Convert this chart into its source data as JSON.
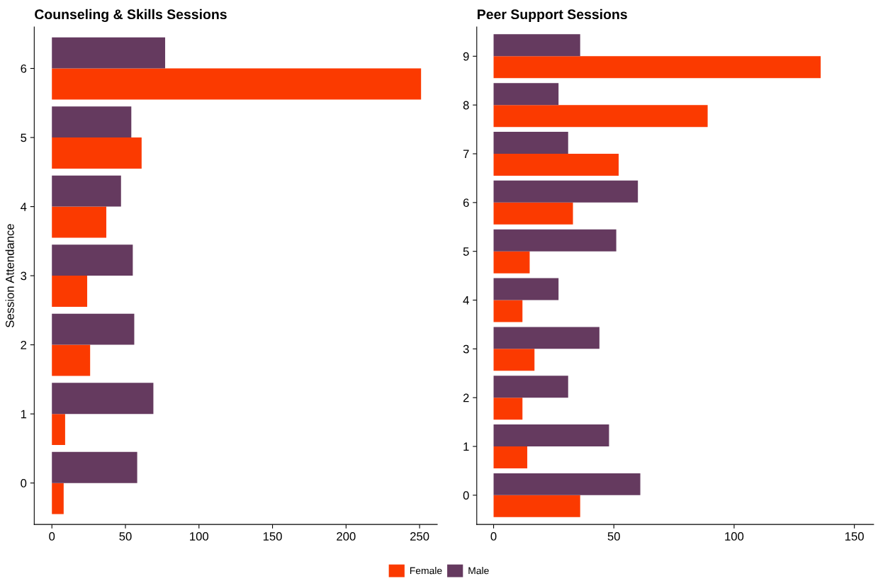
{
  "chart_data": [
    {
      "type": "bar",
      "orientation": "horizontal",
      "title": "Counseling & Skills Sessions",
      "ylabel": "Session Attendance",
      "categories": [
        "6",
        "5",
        "4",
        "3",
        "2",
        "1",
        "0"
      ],
      "series": [
        {
          "name": "Female",
          "color": "#fb3a00",
          "values": [
            251,
            61,
            37,
            24,
            26,
            9,
            8
          ]
        },
        {
          "name": "Male",
          "color": "#653a5f",
          "values": [
            77,
            54,
            47,
            55,
            56,
            69,
            58
          ]
        }
      ],
      "xlim": [
        -12,
        262
      ],
      "xticks": [
        0,
        50,
        100,
        150,
        200,
        250
      ],
      "grid": false,
      "legend": "bottom"
    },
    {
      "type": "bar",
      "orientation": "horizontal",
      "title": "Peer Support Sessions",
      "categories": [
        "9",
        "8",
        "7",
        "6",
        "5",
        "4",
        "3",
        "2",
        "1",
        "0"
      ],
      "series": [
        {
          "name": "Female",
          "color": "#fb3a00",
          "values": [
            136,
            89,
            52,
            33,
            15,
            12,
            17,
            12,
            14,
            36
          ]
        },
        {
          "name": "Male",
          "color": "#653a5f",
          "values": [
            36,
            27,
            31,
            60,
            51,
            27,
            44,
            31,
            48,
            61
          ]
        }
      ],
      "xlim": [
        -7,
        158
      ],
      "xticks": [
        0,
        50,
        100,
        150
      ],
      "grid": false,
      "legend": "bottom"
    }
  ]
}
